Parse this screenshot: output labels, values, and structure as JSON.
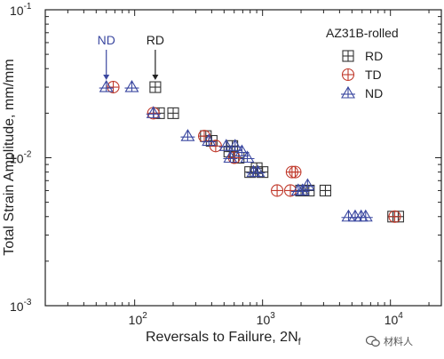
{
  "chart_data": {
    "type": "scatter",
    "title": "",
    "xlabel": "Reversals to Failure, 2N",
    "xlabel_sub": "f",
    "ylabel": "Total Strain Amplitude, mm/mm",
    "xscale": "log",
    "yscale": "log",
    "xlim": [
      20,
      25000
    ],
    "ylim": [
      0.001,
      0.1
    ],
    "x_ticks": [
      {
        "value": 100,
        "base": "10",
        "exp": "2"
      },
      {
        "value": 1000,
        "base": "10",
        "exp": "3"
      },
      {
        "value": 10000,
        "base": "10",
        "exp": "4"
      }
    ],
    "y_ticks": [
      {
        "value": 0.001,
        "base": "10",
        "exp": "-3"
      },
      {
        "value": 0.01,
        "base": "10",
        "exp": "-2"
      },
      {
        "value": 0.1,
        "base": "10",
        "exp": "-1"
      }
    ],
    "grid": false,
    "legend": {
      "title": "AZ31B-rolled",
      "placement": "top-right"
    },
    "series": [
      {
        "name": "RD",
        "marker": "boxed-plus",
        "color": "#333333",
        "points": [
          [
            145,
            0.03
          ],
          [
            155,
            0.02
          ],
          [
            200,
            0.02
          ],
          [
            360,
            0.014
          ],
          [
            400,
            0.013
          ],
          [
            550,
            0.011
          ],
          [
            580,
            0.012
          ],
          [
            650,
            0.01
          ],
          [
            800,
            0.008
          ],
          [
            900,
            0.0085
          ],
          [
            1000,
            0.008
          ],
          [
            2000,
            0.006
          ],
          [
            2300,
            0.006
          ],
          [
            3100,
            0.006
          ],
          [
            10500,
            0.004
          ],
          [
            11500,
            0.004
          ]
        ]
      },
      {
        "name": "TD",
        "marker": "circled-plus",
        "color": "#c0392b",
        "points": [
          [
            68,
            0.03
          ],
          [
            140,
            0.02
          ],
          [
            350,
            0.014
          ],
          [
            430,
            0.012
          ],
          [
            600,
            0.01
          ],
          [
            1300,
            0.006
          ],
          [
            1650,
            0.006
          ],
          [
            1700,
            0.008
          ],
          [
            1800,
            0.008
          ],
          [
            10800,
            0.004
          ]
        ]
      },
      {
        "name": "ND",
        "marker": "triangle-plus",
        "color": "#3b48a0",
        "points": [
          [
            60,
            0.03
          ],
          [
            95,
            0.03
          ],
          [
            140,
            0.02
          ],
          [
            260,
            0.014
          ],
          [
            380,
            0.013
          ],
          [
            520,
            0.012
          ],
          [
            560,
            0.01
          ],
          [
            610,
            0.012
          ],
          [
            690,
            0.011
          ],
          [
            760,
            0.01
          ],
          [
            850,
            0.008
          ],
          [
            920,
            0.008
          ],
          [
            1900,
            0.006
          ],
          [
            2050,
            0.006
          ],
          [
            2250,
            0.0065
          ],
          [
            4700,
            0.004
          ],
          [
            5300,
            0.004
          ],
          [
            5900,
            0.004
          ],
          [
            6400,
            0.004
          ]
        ]
      }
    ],
    "annotations": [
      {
        "text": "ND",
        "color": "#3b48a0",
        "x": 60,
        "y": 0.03
      },
      {
        "text": "RD",
        "color": "#222222",
        "x": 145,
        "y": 0.03
      }
    ]
  },
  "watermark": {
    "text": "材料人"
  }
}
